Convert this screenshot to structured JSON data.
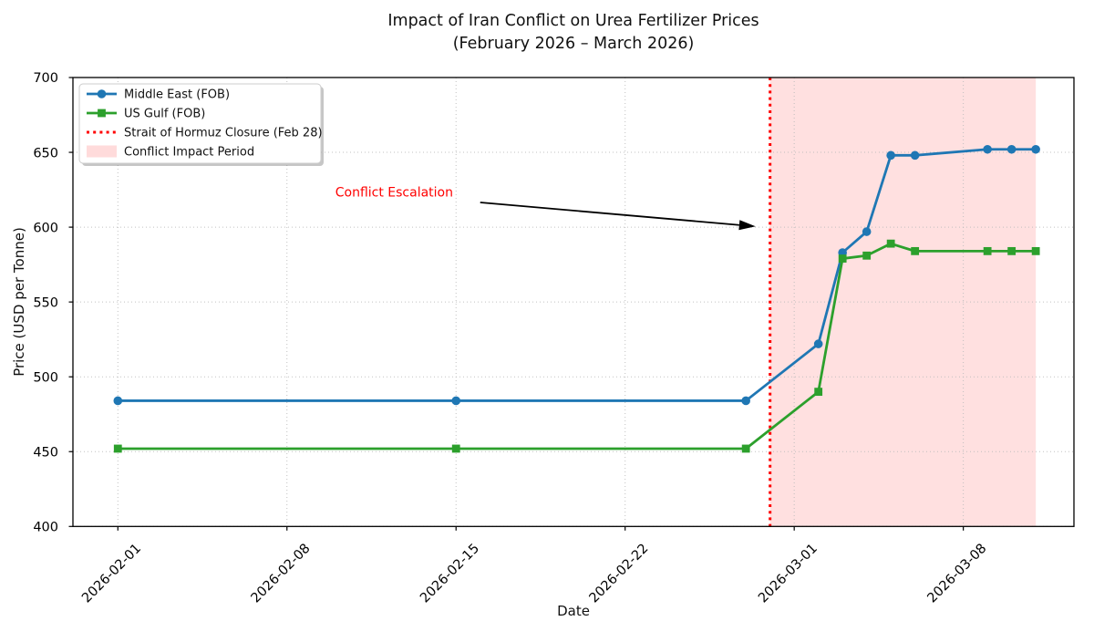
{
  "chart_data": {
    "type": "line",
    "title": "Impact of Iran Conflict on Urea Fertilizer Prices",
    "subtitle": "(February 2026 – March 2026)",
    "xlabel": "Date",
    "ylabel": "Price (USD per Tonne)",
    "ylim": [
      400,
      700
    ],
    "yticks": [
      400,
      450,
      500,
      550,
      600,
      650,
      700
    ],
    "xticks": [
      {
        "day": 0,
        "label": "2026-02-01"
      },
      {
        "day": 7,
        "label": "2026-02-08"
      },
      {
        "day": 14,
        "label": "2026-02-15"
      },
      {
        "day": 21,
        "label": "2026-02-22"
      },
      {
        "day": 28,
        "label": "2026-03-01"
      },
      {
        "day": 35,
        "label": "2026-03-08"
      }
    ],
    "x_domain_days": [
      -1.86,
      39.58
    ],
    "grid": true,
    "legend_position": "upper left",
    "dates": [
      "2026-02-01",
      "2026-02-15",
      "2026-02-27",
      "2026-03-02",
      "2026-03-03",
      "2026-03-04",
      "2026-03-05",
      "2026-03-06",
      "2026-03-09",
      "2026-03-10",
      "2026-03-11"
    ],
    "days": [
      0,
      14,
      26,
      29,
      30,
      31,
      32,
      33,
      36,
      37,
      38
    ],
    "series": [
      {
        "name": "Middle East (FOB)",
        "color": "#1f77b4",
        "marker": "circle",
        "values": [
          484,
          484,
          484,
          522,
          583,
          597,
          648,
          648,
          652,
          652,
          652
        ]
      },
      {
        "name": "US Gulf (FOB)",
        "color": "#2ca02c",
        "marker": "square",
        "values": [
          452,
          452,
          452,
          490,
          579,
          581,
          589,
          584,
          584,
          584,
          584
        ]
      }
    ],
    "event_line": {
      "label": "Strait of Hormuz Closure (Feb 28)",
      "day": 27,
      "color": "#ff0000",
      "style": "dotted"
    },
    "impact_span": {
      "label": "Conflict Impact Period",
      "start_day": 27,
      "end_day": 38,
      "color": "rgba(255,0,0,0.12)"
    },
    "annotation": {
      "text": "Conflict Escalation",
      "color": "#ff0000",
      "text_day": 9.0,
      "text_value": 620.5,
      "arrow_from_day": 15.0,
      "arrow_from_value": 616.5,
      "arrow_to_day": 26.4,
      "arrow_to_value": 600.5
    },
    "legend": {
      "entries": [
        {
          "label": "Middle East (FOB)",
          "swatch": "line-circle",
          "color": "#1f77b4"
        },
        {
          "label": "US Gulf (FOB)",
          "swatch": "line-square",
          "color": "#2ca02c"
        },
        {
          "label": "Strait of Hormuz Closure (Feb 28)",
          "swatch": "dotted-line",
          "color": "#ff0000"
        },
        {
          "label": "Conflict Impact Period",
          "swatch": "patch",
          "color": "rgba(255,0,0,0.14)"
        }
      ]
    },
    "colors": {
      "grid": "#bbbbbb",
      "spine": "#000000",
      "tick_text": "#000000"
    }
  }
}
